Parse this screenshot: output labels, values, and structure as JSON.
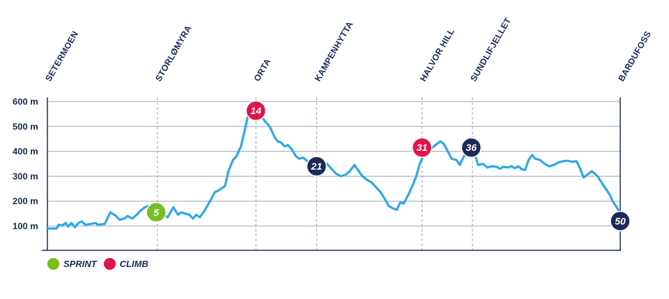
{
  "chart_data": {
    "type": "area",
    "title": "",
    "xlabel": "",
    "ylabel": "",
    "x_unit": "km",
    "xlim": [
      0,
      50
    ],
    "ylim": [
      0,
      650
    ],
    "y_ticks": [
      {
        "value": 100,
        "label": "100 m"
      },
      {
        "value": 200,
        "label": "200 m"
      },
      {
        "value": 300,
        "label": "300 m"
      },
      {
        "value": 400,
        "label": "400 m"
      },
      {
        "value": 500,
        "label": "500 m"
      },
      {
        "value": 600,
        "label": "600 m"
      }
    ],
    "grid": true,
    "locations": [
      {
        "name": "SETERMOEN",
        "km": 0,
        "guide": false
      },
      {
        "name": "STORLØMYRA",
        "km": 9.6,
        "guide": true
      },
      {
        "name": "ORTA",
        "km": 18.2,
        "guide": true
      },
      {
        "name": "KAMPENHYTTA",
        "km": 23.5,
        "guide": true
      },
      {
        "name": "HALVOR HILL",
        "km": 32.7,
        "guide": true
      },
      {
        "name": "SUNDLIFJELLET",
        "km": 37.1,
        "guide": true
      },
      {
        "name": "BARDUFOSS",
        "km": 50,
        "guide": false
      }
    ],
    "markers": [
      {
        "label": "5",
        "type": "sprint",
        "km": 9.5,
        "elev": 155
      },
      {
        "label": "14",
        "type": "climb",
        "km": 18.2,
        "elev": 563
      },
      {
        "label": "21",
        "type": "km",
        "km": 23.5,
        "elev": 340
      },
      {
        "label": "31",
        "type": "climb",
        "km": 32.7,
        "elev": 415
      },
      {
        "label": "36",
        "type": "km",
        "km": 37.0,
        "elev": 415
      },
      {
        "label": "50",
        "type": "km",
        "km": 50,
        "elev": 120
      }
    ],
    "series": [
      {
        "values": [
          [
            0,
            90
          ],
          [
            0.8,
            90
          ],
          [
            1.0,
            105
          ],
          [
            1.3,
            102
          ],
          [
            1.6,
            112
          ],
          [
            1.8,
            98
          ],
          [
            2.1,
            112
          ],
          [
            2.4,
            95
          ],
          [
            2.7,
            112
          ],
          [
            3.0,
            118
          ],
          [
            3.3,
            105
          ],
          [
            3.8,
            108
          ],
          [
            4.2,
            112
          ],
          [
            4.4,
            105
          ],
          [
            5.0,
            108
          ],
          [
            5.5,
            155
          ],
          [
            6.0,
            140
          ],
          [
            6.3,
            125
          ],
          [
            6.7,
            130
          ],
          [
            7.0,
            140
          ],
          [
            7.4,
            130
          ],
          [
            7.8,
            145
          ],
          [
            8.1,
            160
          ],
          [
            8.5,
            175
          ],
          [
            8.8,
            180
          ],
          [
            9.2,
            175
          ],
          [
            9.6,
            160
          ],
          [
            10.0,
            150
          ],
          [
            10.5,
            135
          ],
          [
            11.0,
            175
          ],
          [
            11.4,
            145
          ],
          [
            11.7,
            155
          ],
          [
            12.0,
            150
          ],
          [
            12.4,
            145
          ],
          [
            12.7,
            130
          ],
          [
            13.0,
            145
          ],
          [
            13.3,
            135
          ],
          [
            13.7,
            160
          ],
          [
            14.2,
            200
          ],
          [
            14.6,
            235
          ],
          [
            15.0,
            245
          ],
          [
            15.5,
            260
          ],
          [
            15.8,
            320
          ],
          [
            16.2,
            365
          ],
          [
            16.5,
            380
          ],
          [
            16.9,
            420
          ],
          [
            17.2,
            480
          ],
          [
            17.5,
            540
          ],
          [
            17.8,
            548
          ],
          [
            18.2,
            560
          ],
          [
            18.6,
            545
          ],
          [
            19.0,
            520
          ],
          [
            19.4,
            500
          ],
          [
            19.8,
            460
          ],
          [
            20.1,
            440
          ],
          [
            20.4,
            435
          ],
          [
            20.7,
            420
          ],
          [
            21.0,
            425
          ],
          [
            21.3,
            410
          ],
          [
            21.7,
            380
          ],
          [
            22.0,
            370
          ],
          [
            22.3,
            375
          ],
          [
            22.7,
            360
          ],
          [
            23.0,
            330
          ],
          [
            23.3,
            320
          ],
          [
            23.7,
            340
          ],
          [
            24.0,
            355
          ],
          [
            24.4,
            350
          ],
          [
            24.8,
            330
          ],
          [
            25.2,
            310
          ],
          [
            25.6,
            300
          ],
          [
            26.0,
            305
          ],
          [
            26.4,
            320
          ],
          [
            26.8,
            345
          ],
          [
            27.1,
            325
          ],
          [
            27.5,
            300
          ],
          [
            27.9,
            285
          ],
          [
            28.3,
            275
          ],
          [
            28.7,
            255
          ],
          [
            29.1,
            235
          ],
          [
            29.5,
            205
          ],
          [
            29.8,
            180
          ],
          [
            30.2,
            170
          ],
          [
            30.5,
            165
          ],
          [
            30.8,
            195
          ],
          [
            31.1,
            190
          ],
          [
            31.5,
            225
          ],
          [
            31.9,
            265
          ],
          [
            32.2,
            300
          ],
          [
            32.5,
            350
          ],
          [
            32.8,
            380
          ],
          [
            33.2,
            400
          ],
          [
            33.6,
            415
          ],
          [
            34.0,
            430
          ],
          [
            34.3,
            440
          ],
          [
            34.6,
            430
          ],
          [
            35.0,
            395
          ],
          [
            35.3,
            370
          ],
          [
            35.7,
            365
          ],
          [
            36.0,
            345
          ],
          [
            36.3,
            375
          ],
          [
            36.6,
            395
          ],
          [
            37.0,
            405
          ],
          [
            37.3,
            390
          ],
          [
            37.6,
            345
          ],
          [
            38.0,
            350
          ],
          [
            38.4,
            335
          ],
          [
            38.8,
            340
          ],
          [
            39.2,
            338
          ],
          [
            39.5,
            330
          ],
          [
            39.8,
            338
          ],
          [
            40.2,
            335
          ],
          [
            40.5,
            340
          ],
          [
            40.8,
            332
          ],
          [
            41.1,
            340
          ],
          [
            41.4,
            328
          ],
          [
            41.7,
            325
          ],
          [
            42.0,
            365
          ],
          [
            42.3,
            385
          ],
          [
            42.6,
            370
          ],
          [
            43.0,
            365
          ],
          [
            43.4,
            350
          ],
          [
            43.8,
            340
          ],
          [
            44.2,
            345
          ],
          [
            44.6,
            355
          ],
          [
            45.0,
            360
          ],
          [
            45.4,
            362
          ],
          [
            45.8,
            358
          ],
          [
            46.2,
            360
          ],
          [
            46.5,
            330
          ],
          [
            46.8,
            295
          ],
          [
            47.1,
            305
          ],
          [
            47.5,
            320
          ],
          [
            47.8,
            310
          ],
          [
            48.1,
            295
          ],
          [
            48.5,
            265
          ],
          [
            48.8,
            245
          ],
          [
            49.1,
            225
          ],
          [
            49.4,
            195
          ],
          [
            49.7,
            175
          ],
          [
            50.0,
            150
          ]
        ]
      }
    ]
  },
  "legend": {
    "items": [
      {
        "label": "SPRINT",
        "color": "#78be20"
      },
      {
        "label": "CLIMB",
        "color": "#e0134b"
      }
    ]
  },
  "colors": {
    "profile": "#2ea8e5",
    "axis": "#1b2a57",
    "grid": "#9aa3bd",
    "sprint": "#78be20",
    "climb": "#e0134b",
    "km": "#1b2a57"
  }
}
